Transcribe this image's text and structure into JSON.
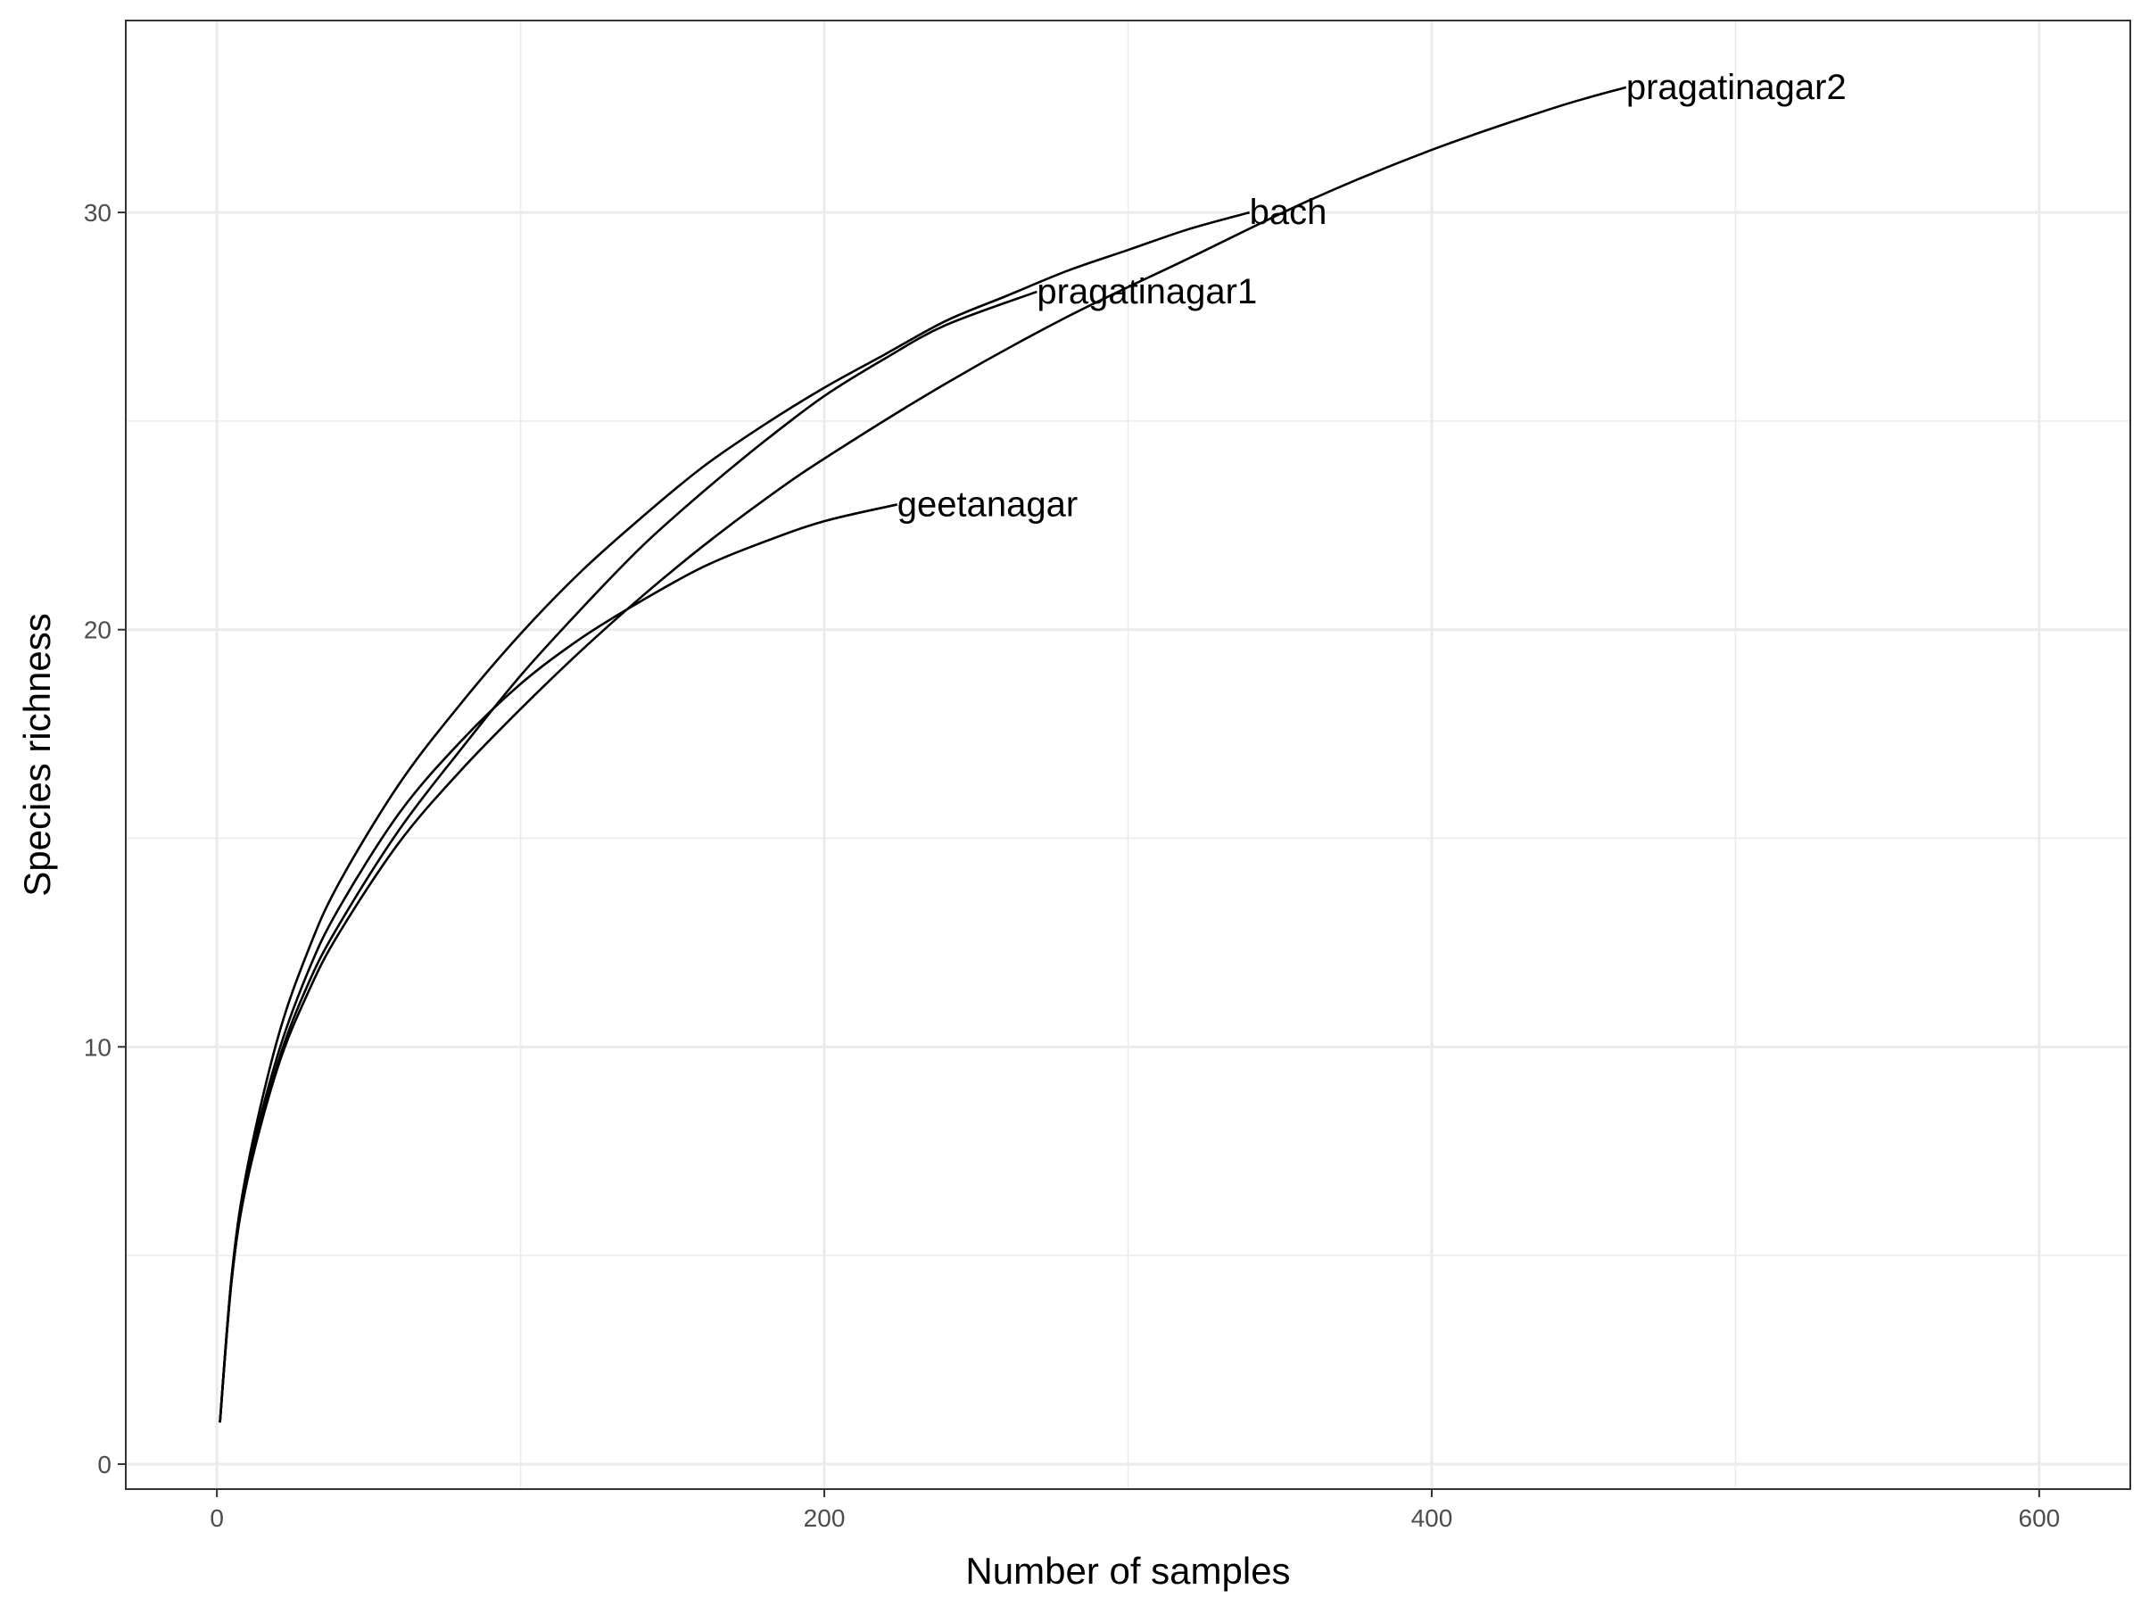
{
  "chart_data": {
    "type": "line",
    "title": "",
    "xlabel": "Number of samples",
    "ylabel": "Species richness",
    "xlim": [
      -30,
      630
    ],
    "ylim": [
      -0.6,
      34.6
    ],
    "xticks": [
      0,
      200,
      400,
      600
    ],
    "yticks": [
      0,
      10,
      20,
      30
    ],
    "xminor": [
      100,
      300,
      500
    ],
    "yminor": [
      5,
      15,
      25
    ],
    "grid": true,
    "legend": "none",
    "colors": {
      "line": "#000000",
      "grid": "#ebebeb",
      "border": "#333333",
      "tick_text": "#4d4d4d"
    },
    "series": [
      {
        "name": "geetanagar",
        "end_label": "geetanagar",
        "x": [
          1,
          5,
          10,
          20,
          30,
          40,
          60,
          80,
          100,
          120,
          140,
          160,
          180,
          200,
          224
        ],
        "y": [
          1,
          4.6,
          7.0,
          9.8,
          11.8,
          13.3,
          15.6,
          17.3,
          18.7,
          19.8,
          20.7,
          21.5,
          22.1,
          22.6,
          23.0
        ]
      },
      {
        "name": "pragatinagar1",
        "end_label": "pragatinagar1",
        "x": [
          1,
          5,
          10,
          20,
          30,
          40,
          60,
          80,
          100,
          120,
          140,
          160,
          180,
          200,
          220,
          240,
          270
        ],
        "y": [
          1,
          4.5,
          6.8,
          9.6,
          11.5,
          12.9,
          15.2,
          17.1,
          18.9,
          20.5,
          22.0,
          23.3,
          24.5,
          25.6,
          26.5,
          27.3,
          28.1
        ]
      },
      {
        "name": "bach",
        "end_label": "bach",
        "x": [
          1,
          5,
          10,
          20,
          30,
          40,
          60,
          80,
          100,
          120,
          140,
          160,
          180,
          200,
          220,
          240,
          260,
          280,
          300,
          320,
          340
        ],
        "y": [
          1,
          4.6,
          7.1,
          10.2,
          12.3,
          13.9,
          16.3,
          18.2,
          19.9,
          21.4,
          22.7,
          23.9,
          24.9,
          25.8,
          26.6,
          27.4,
          28.0,
          28.6,
          29.1,
          29.6,
          30.0
        ]
      },
      {
        "name": "pragatinagar2",
        "end_label": "pragatinagar2",
        "x": [
          1,
          5,
          10,
          20,
          30,
          40,
          60,
          80,
          100,
          120,
          140,
          160,
          180,
          200,
          240,
          280,
          320,
          360,
          400,
          440,
          464
        ],
        "y": [
          1,
          4.5,
          6.8,
          9.5,
          11.3,
          12.7,
          14.9,
          16.6,
          18.1,
          19.5,
          20.8,
          22.0,
          23.1,
          24.1,
          25.9,
          27.5,
          28.9,
          30.3,
          31.5,
          32.5,
          33.0
        ]
      }
    ]
  }
}
